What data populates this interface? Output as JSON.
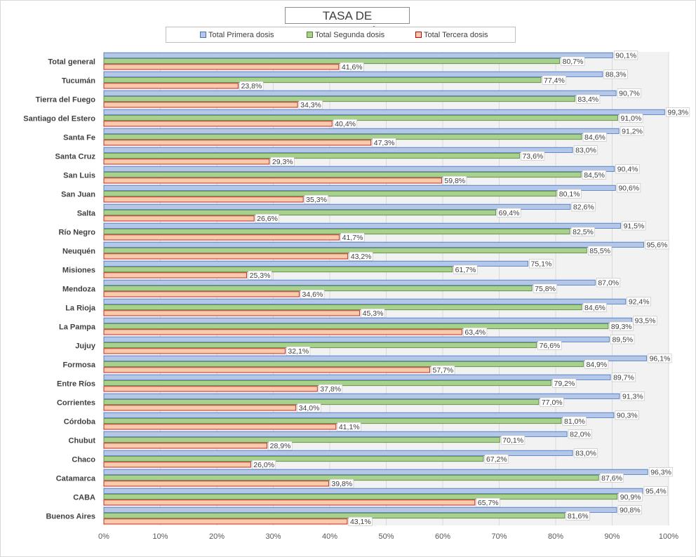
{
  "chart_data": {
    "type": "bar",
    "orientation": "horizontal",
    "title": "TASA DE VACUNACIÓN",
    "categories": [
      "Total general",
      "Tucumán",
      "Tierra del Fuego",
      "Santiago del Estero",
      "Santa Fe",
      "Santa Cruz",
      "San Luis",
      "San Juan",
      "Salta",
      "Río Negro",
      "Neuquén",
      "Misiones",
      "Mendoza",
      "La Rioja",
      "La Pampa",
      "Jujuy",
      "Formosa",
      "Entre Ríos",
      "Corrientes",
      "Córdoba",
      "Chubut",
      "Chaco",
      "Catamarca",
      "CABA",
      "Buenos Aires"
    ],
    "series": [
      {
        "name": "Total Primera dosis",
        "color": "#b4c7e7",
        "values": [
          90.1,
          88.3,
          90.7,
          99.3,
          91.2,
          83.0,
          90.4,
          90.6,
          82.6,
          91.5,
          95.6,
          75.1,
          87.0,
          92.4,
          93.5,
          89.5,
          96.1,
          89.7,
          91.3,
          90.3,
          82.0,
          83.0,
          96.3,
          95.4,
          90.8
        ],
        "labels": [
          "90,1%",
          "88,3%",
          "90,7%",
          "99,3%",
          "91,2%",
          "83,0%",
          "90,4%",
          "90,6%",
          "82,6%",
          "91,5%",
          "95,6%",
          "75,1%",
          "87,0%",
          "92,4%",
          "93,5%",
          "89,5%",
          "96,1%",
          "89,7%",
          "91,3%",
          "90,3%",
          "82,0%",
          "83,0%",
          "96,3%",
          "95,4%",
          "90,8%"
        ]
      },
      {
        "name": "Total Segunda dosis",
        "color": "#a9d18e",
        "values": [
          80.7,
          77.4,
          83.4,
          91.0,
          84.6,
          73.6,
          84.5,
          80.1,
          69.4,
          82.5,
          85.5,
          61.7,
          75.8,
          84.6,
          89.3,
          76.6,
          84.9,
          79.2,
          77.0,
          81.0,
          70.1,
          67.2,
          87.6,
          90.9,
          81.6
        ],
        "labels": [
          "80,7%",
          "77,4%",
          "83,4%",
          "91,0%",
          "84,6%",
          "73,6%",
          "84,5%",
          "80,1%",
          "69,4%",
          "82,5%",
          "85,5%",
          "61,7%",
          "75,8%",
          "84,6%",
          "89,3%",
          "76,6%",
          "84,9%",
          "79,2%",
          "77,0%",
          "81,0%",
          "70,1%",
          "67,2%",
          "87,6%",
          "90,9%",
          "81,6%"
        ]
      },
      {
        "name": "Total Tercera dosis",
        "color": "#f8cbad",
        "values": [
          41.6,
          23.8,
          34.3,
          40.4,
          47.3,
          29.3,
          59.8,
          35.3,
          26.6,
          41.7,
          43.2,
          25.3,
          34.6,
          45.3,
          63.4,
          32.1,
          57.7,
          37.8,
          34.0,
          41.1,
          28.9,
          26.0,
          39.8,
          65.7,
          43.1
        ],
        "labels": [
          "41,6%",
          "23,8%",
          "34,3%",
          "40,4%",
          "47,3%",
          "29,3%",
          "59,8%",
          "35,3%",
          "26,6%",
          "41,7%",
          "43,2%",
          "25,3%",
          "34,6%",
          "45,3%",
          "63,4%",
          "32,1%",
          "57,7%",
          "37,8%",
          "34,0%",
          "41,1%",
          "28,9%",
          "26,0%",
          "39,8%",
          "65,7%",
          "43,1%"
        ]
      }
    ],
    "xlim": [
      0,
      100
    ],
    "x_ticks": [
      0,
      10,
      20,
      30,
      40,
      50,
      60,
      70,
      80,
      90,
      100
    ],
    "x_tick_labels": [
      "0%",
      "10%",
      "20%",
      "30%",
      "40%",
      "50%",
      "60%",
      "70%",
      "80%",
      "90%",
      "100%"
    ],
    "grid": true,
    "legend_position": "top"
  }
}
